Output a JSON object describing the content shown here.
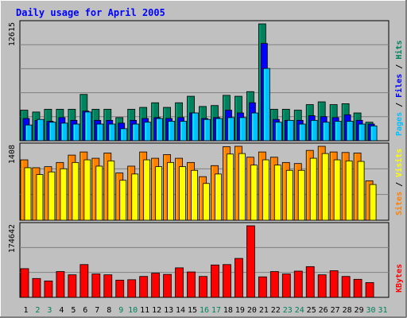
{
  "chart_data": [
    {
      "type": "bar",
      "title": "Daily usage for April 2005",
      "panel": "pages-files-hits",
      "y_axis_label_printed": "12615",
      "ylim": [
        0,
        12615
      ],
      "grid": true,
      "right_label": {
        "parts": [
          "Pages",
          "Files",
          "Hits"
        ],
        "separator": " / "
      },
      "categories": [
        "1",
        "2",
        "3",
        "4",
        "5",
        "6",
        "7",
        "8",
        "9",
        "10",
        "11",
        "12",
        "13",
        "14",
        "15",
        "16",
        "17",
        "18",
        "19",
        "20",
        "21",
        "22",
        "23",
        "24",
        "25",
        "26",
        "27",
        "28",
        "29",
        "30",
        "31"
      ],
      "series": [
        {
          "name": "Hits",
          "values": [
            3300,
            3100,
            3400,
            3400,
            3400,
            5000,
            3400,
            3400,
            2500,
            3400,
            3600,
            4100,
            3600,
            4100,
            4800,
            3700,
            3800,
            4900,
            4800,
            5300,
            12615,
            3400,
            3400,
            3300,
            3900,
            4200,
            3900,
            4000,
            3000,
            2000,
            0
          ]
        },
        {
          "name": "Files",
          "values": [
            2400,
            2200,
            2100,
            2500,
            2200,
            3200,
            2200,
            2200,
            1900,
            2200,
            2400,
            2500,
            2400,
            2500,
            3000,
            2400,
            2500,
            3300,
            3000,
            4100,
            10500,
            2300,
            2200,
            2200,
            2700,
            2600,
            2500,
            2800,
            2200,
            1800,
            0
          ]
        },
        {
          "name": "Pages",
          "values": [
            1700,
            2300,
            2000,
            1900,
            1800,
            3100,
            1800,
            1800,
            1300,
            1800,
            2000,
            2400,
            2100,
            2100,
            3000,
            2300,
            2400,
            2500,
            2500,
            3000,
            7800,
            2000,
            2200,
            1800,
            2200,
            2000,
            2100,
            2100,
            1800,
            1600,
            0
          ]
        }
      ]
    },
    {
      "type": "bar",
      "panel": "sites-visits",
      "y_axis_label_printed": "1408",
      "ylim": [
        0,
        1408
      ],
      "grid": true,
      "right_label": {
        "parts": [
          "Sites",
          "Visits"
        ],
        "separator": " / "
      },
      "categories": [
        "1",
        "2",
        "3",
        "4",
        "5",
        "6",
        "7",
        "8",
        "9",
        "10",
        "11",
        "12",
        "13",
        "14",
        "15",
        "16",
        "17",
        "18",
        "19",
        "20",
        "21",
        "22",
        "23",
        "24",
        "25",
        "26",
        "27",
        "28",
        "29",
        "30",
        "31"
      ],
      "series": [
        {
          "name": "Visits",
          "values": [
            1150,
            1000,
            1020,
            1100,
            1240,
            1300,
            1180,
            1280,
            900,
            1030,
            1300,
            1180,
            1250,
            1180,
            1100,
            830,
            1040,
            1400,
            1408,
            1200,
            1300,
            1200,
            1100,
            1080,
            1330,
            1408,
            1300,
            1290,
            1280,
            750,
            0
          ]
        },
        {
          "name": "Sites",
          "values": [
            1000,
            870,
            920,
            980,
            1100,
            1150,
            1030,
            1130,
            760,
            880,
            1150,
            1020,
            1100,
            1020,
            950,
            700,
            880,
            1260,
            1270,
            1050,
            1150,
            1050,
            950,
            950,
            1180,
            1270,
            1150,
            1130,
            1120,
            680,
            0
          ]
        }
      ]
    },
    {
      "type": "bar",
      "panel": "kbytes",
      "y_axis_label_printed": "174642",
      "ylim": [
        0,
        174642
      ],
      "grid": true,
      "right_label": {
        "parts": [
          "KBytes"
        ],
        "separator": ""
      },
      "categories": [
        "1",
        "2",
        "3",
        "4",
        "5",
        "6",
        "7",
        "8",
        "9",
        "10",
        "11",
        "12",
        "13",
        "14",
        "15",
        "16",
        "17",
        "18",
        "19",
        "20",
        "21",
        "22",
        "23",
        "24",
        "25",
        "26",
        "27",
        "28",
        "29",
        "30",
        "31"
      ],
      "series": [
        {
          "name": "KBytes",
          "values": [
            70000,
            46000,
            40000,
            63000,
            55000,
            80000,
            57000,
            55000,
            42000,
            43000,
            51000,
            59000,
            56000,
            72000,
            62000,
            51000,
            79000,
            80000,
            95000,
            174642,
            50000,
            63000,
            57000,
            64000,
            75000,
            55000,
            65000,
            51000,
            44000,
            36000,
            0
          ]
        }
      ]
    }
  ],
  "x_axis": {
    "labels": [
      "1",
      "2",
      "3",
      "4",
      "5",
      "6",
      "7",
      "8",
      "9",
      "10",
      "11",
      "12",
      "13",
      "14",
      "15",
      "16",
      "17",
      "18",
      "19",
      "20",
      "21",
      "22",
      "23",
      "24",
      "25",
      "26",
      "27",
      "28",
      "29",
      "30",
      "31"
    ],
    "weekend": [
      "2",
      "3",
      "9",
      "10",
      "16",
      "17",
      "23",
      "24",
      "30",
      "31"
    ]
  },
  "colors": {
    "background": "#c0c0c0",
    "plot_bg": "#c0c0c0",
    "grid": "#808080",
    "title": "#0000ff",
    "hits": "#00805c",
    "files": "#0000ff",
    "pages": "#00c0ff",
    "visits": "#ff8000",
    "sites": "#ffff00",
    "kbytes": "#ff0000",
    "weekday_label": "#000000",
    "weekend_label": "#00805c",
    "axis_label": "#000000"
  }
}
